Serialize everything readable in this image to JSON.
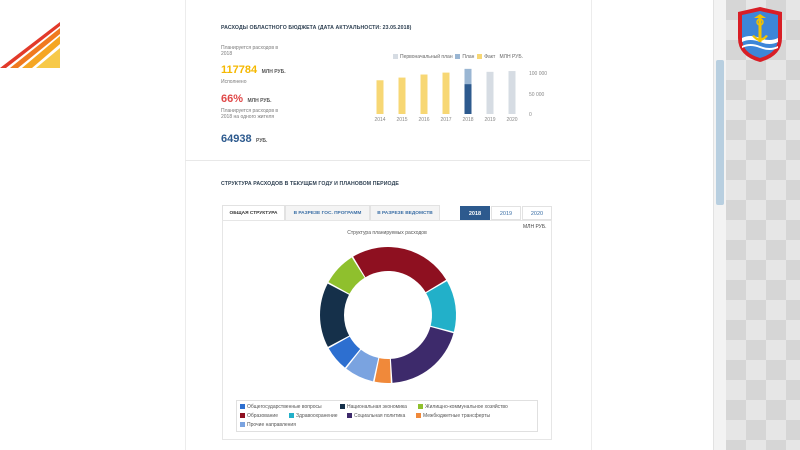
{
  "budget_section": {
    "title": "РАСХОДЫ ОБЛАСТНОГО БЮДЖЕТА (ДАТА АКТУАЛЬНОСТИ: 23.05.2018)",
    "planned_label": "Планируется расходов в 2018",
    "planned_value": "117784",
    "planned_unit": "МЛН РУБ.",
    "executed_label": "Исполнено",
    "executed_value": "66%",
    "executed_unit": "МЛН РУБ.",
    "per_capita_label": "Планируется расходов в 2018 на одного жителя",
    "per_capita_value": "64938",
    "per_capita_unit": "РУБ."
  },
  "bar_chart": {
    "legend": {
      "initial_plan": "Первоначальный план",
      "plan": "План",
      "fact": "Факт",
      "unit": "МЛН РУБ."
    },
    "y_ticks": [
      "100 000",
      "50 000",
      "0"
    ]
  },
  "chart_data": [
    {
      "type": "bar",
      "categories": [
        "2014",
        "2015",
        "2016",
        "2017",
        "2018",
        "2019",
        "2020"
      ],
      "series": [
        {
          "name": "Факт",
          "values": [
            88000,
            95000,
            103000,
            108000,
            null,
            null,
            null
          ]
        },
        {
          "name": "План",
          "values": [
            null,
            null,
            null,
            null,
            117784,
            110000,
            112000
          ]
        },
        {
          "name": "Первоначальный план",
          "values": [
            null,
            null,
            null,
            null,
            null,
            null,
            null
          ]
        }
      ],
      "title": "",
      "ylim": [
        0,
        120000
      ],
      "colors": {
        "Факт": "#f7d774",
        "План": "#2d5a8e",
        "plan_future": "#d6dce3",
        "plan_light": "#9ab6d3"
      }
    },
    {
      "type": "pie",
      "title": "Структура планируемых расходов",
      "categories": [
        "Образование",
        "Здравоохранение",
        "Социальная политика",
        "Межбюджетные трансферты",
        "Прочие направления",
        "Общегосударственные вопросы",
        "Национальная экономика",
        "Жилищно-коммунальное хозяйство"
      ],
      "values": [
        24,
        12,
        19,
        4,
        7,
        6,
        15,
        8
      ],
      "colors": [
        "#8e1020",
        "#22b0c9",
        "#3d2a6b",
        "#f0893a",
        "#7aa3e0",
        "#2d6fd0",
        "#15304a",
        "#8fc02d"
      ]
    }
  ],
  "structure_section": {
    "title": "СТРУКТУРА РАСХОДОВ В ТЕКУЩЕМ ГОДУ И ПЛАНОВОМ ПЕРИОДЕ",
    "tabs": [
      "ОБЩАЯ СТРУКТУРА",
      "В РАЗРЕЗЕ ГОС. ПРОГРАММ",
      "В РАЗРЕЗЕ ВЕДОМСТВ"
    ],
    "years": [
      "2018",
      "2019",
      "2020"
    ],
    "unit": "МЛН РУБ.",
    "legend": [
      {
        "label": "Общегосударственные вопросы",
        "color": "#2d6fd0"
      },
      {
        "label": "Национальная экономика",
        "color": "#15304a"
      },
      {
        "label": "Жилищно-коммунальное хозяйство",
        "color": "#8fc02d"
      },
      {
        "label": "Образование",
        "color": "#8e1020"
      },
      {
        "label": "Здравоохранение",
        "color": "#22b0c9"
      },
      {
        "label": "Социальная политика",
        "color": "#3d2a6b"
      },
      {
        "label": "Межбюджетные трансферты",
        "color": "#f0893a"
      },
      {
        "label": "Прочие направления",
        "color": "#7aa3e0"
      }
    ]
  },
  "colors": {
    "accent": "#2d5a8e",
    "gold": "#f5b800",
    "red": "#e04848"
  }
}
